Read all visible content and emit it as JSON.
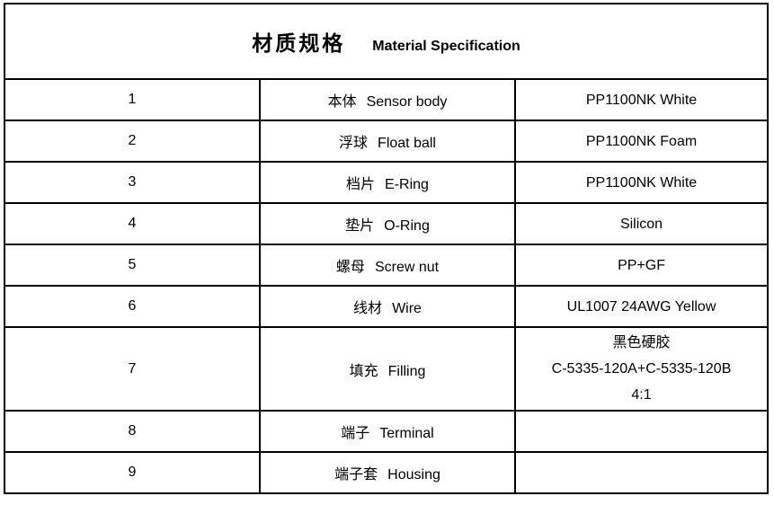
{
  "title": {
    "zh": "材质规格",
    "en": "Material Specification"
  },
  "table": {
    "rows": [
      {
        "no": "1",
        "name_zh": "本体",
        "name_en": "Sensor body",
        "spec": [
          "PP1100NK White"
        ]
      },
      {
        "no": "2",
        "name_zh": "浮球",
        "name_en": "Float ball",
        "spec": [
          "PP1100NK Foam"
        ]
      },
      {
        "no": "3",
        "name_zh": "档片",
        "name_en": "E-Ring",
        "spec": [
          "PP1100NK White"
        ]
      },
      {
        "no": "4",
        "name_zh": "垫片",
        "name_en": "O-Ring",
        "spec": [
          "Silicon"
        ]
      },
      {
        "no": "5",
        "name_zh": "螺母",
        "name_en": "Screw nut",
        "spec": [
          "PP+GF"
        ]
      },
      {
        "no": "6",
        "name_zh": "线材",
        "name_en": "Wire",
        "spec": [
          "UL1007 24AWG Yellow"
        ]
      },
      {
        "no": "7",
        "name_zh": "填充",
        "name_en": "Filling",
        "spec": [
          "黑色硬胶",
          "C-5335-120A+C-5335-120B",
          "4:1"
        ]
      },
      {
        "no": "8",
        "name_zh": "端子",
        "name_en": "Terminal",
        "spec": []
      },
      {
        "no": "9",
        "name_zh": "端子套",
        "name_en": "Housing",
        "spec": []
      }
    ]
  },
  "colors": {
    "border": "#000000",
    "text": "#000000",
    "background": "#ffffff"
  }
}
